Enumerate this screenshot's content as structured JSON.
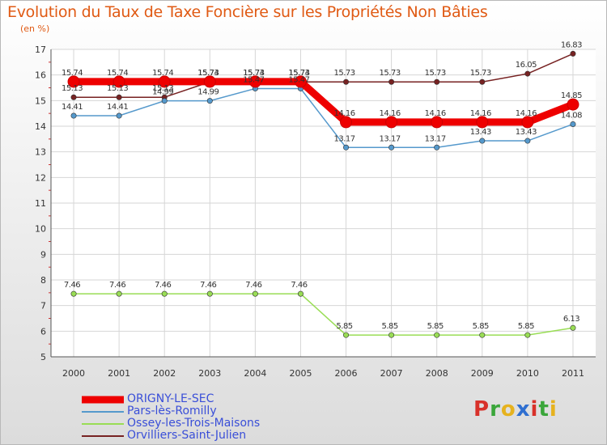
{
  "title": "Evolution du Taux de Taxe Foncière sur les Propriétés Non Bâties",
  "subtitle": "(en %)",
  "logo": {
    "letters": [
      "P",
      "r",
      "o",
      "x",
      "i",
      "t",
      "i"
    ],
    "colors": [
      "#d8312a",
      "#3aa63a",
      "#e6b21e",
      "#2f6fd0",
      "#d8312a",
      "#3aa63a",
      "#e6b21e"
    ]
  },
  "colors": {
    "title": "#e05a14",
    "legend_text": "#3a4fd8",
    "grid": "#d6d6d6",
    "axis": "#555555"
  },
  "chart_data": {
    "type": "line",
    "title": "Evolution du Taux de Taxe Foncière sur les Propriétés Non Bâties",
    "ylabel": "(en %)",
    "categories": [
      "2000",
      "2001",
      "2002",
      "2003",
      "2004",
      "2005",
      "2006",
      "2007",
      "2008",
      "2009",
      "2010",
      "2011"
    ],
    "ylim": [
      5,
      17
    ],
    "yticks": [
      "5",
      "6",
      "7",
      "8",
      "9",
      "10",
      "11",
      "12",
      "13",
      "14",
      "15",
      "16",
      "17"
    ],
    "grid": true,
    "legend_position": "bottom-left",
    "series": [
      {
        "name": "ORIGNY-LE-SEC",
        "color": "#ee0000",
        "values": [
          15.74,
          15.74,
          15.74,
          15.74,
          15.74,
          15.74,
          14.16,
          14.16,
          14.16,
          14.16,
          14.16,
          14.85
        ],
        "labels": [
          "15.74",
          "15.74",
          "15.74",
          "15.74",
          "15.74",
          "15.74",
          "14.16",
          "14.16",
          "14.16",
          "14.16",
          "14.16",
          "14.85"
        ]
      },
      {
        "name": "Pars-lès-Romilly",
        "color": "#5599cc",
        "values": [
          14.41,
          14.41,
          14.99,
          14.99,
          15.47,
          15.47,
          13.17,
          13.17,
          13.17,
          13.43,
          13.43,
          14.08
        ],
        "labels": [
          "14.41",
          "14.41",
          "14.99",
          "14.99",
          "15.47",
          "15.47",
          "13.17",
          "13.17",
          "13.17",
          "13.43",
          "13.43",
          "14.08"
        ]
      },
      {
        "name": "Ossey-les-Trois-Maisons",
        "color": "#99dd55",
        "values": [
          7.46,
          7.46,
          7.46,
          7.46,
          7.46,
          7.46,
          5.85,
          5.85,
          5.85,
          5.85,
          5.85,
          6.13
        ],
        "labels": [
          "7.46",
          "7.46",
          "7.46",
          "7.46",
          "7.46",
          "7.46",
          "5.85",
          "5.85",
          "5.85",
          "5.85",
          "5.85",
          "6.13"
        ]
      },
      {
        "name": "Orvilliers-Saint-Julien",
        "color": "#772222",
        "values": [
          15.13,
          15.13,
          15.13,
          15.73,
          15.73,
          15.73,
          15.73,
          15.73,
          15.73,
          15.73,
          16.05,
          16.83
        ],
        "labels": [
          "15.13",
          "15.13",
          "15.13",
          "15.73",
          "15.73",
          "15.73",
          "15.73",
          "15.73",
          "15.73",
          "15.73",
          "16.05",
          "16.83"
        ]
      }
    ]
  }
}
